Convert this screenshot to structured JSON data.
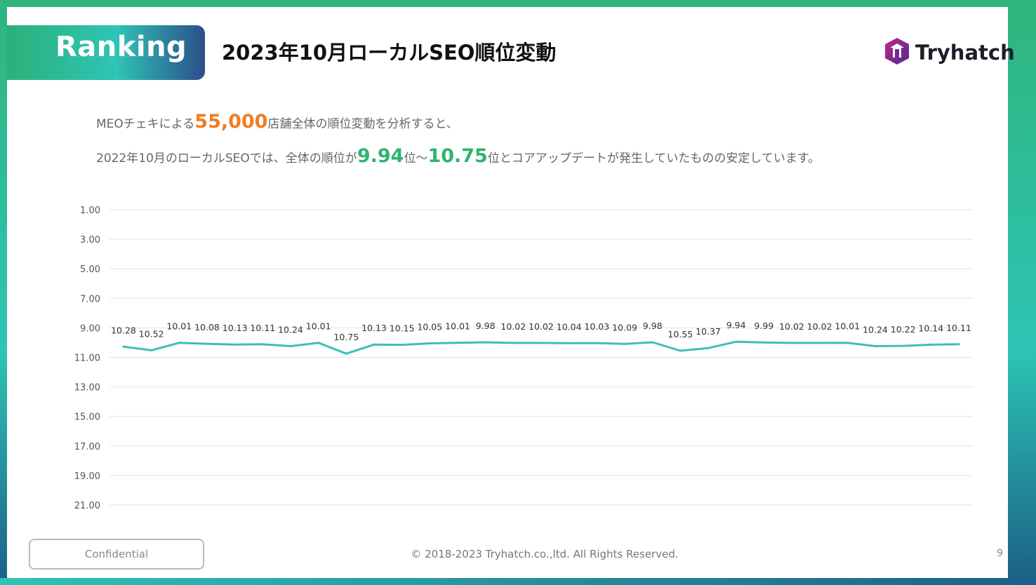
{
  "header": {
    "badge": "Ranking",
    "title": "2023年10月ローカルSEO順位変動",
    "logo_text": "Tryhatch"
  },
  "summary": {
    "line1_prefix": "MEOチェキによる",
    "line1_highlight": "55,000",
    "line1_suffix": "店舗全体の順位変動を分析すると、",
    "line2_prefix": "2022年10月のローカルSEOでは、全体の順位が",
    "line2_low": "9.94",
    "line2_mid": "位～",
    "line2_high": "10.75",
    "line2_suffix": "位とコアアップデートが発生していたものの安定しています。"
  },
  "footer": {
    "confidential": "Confidential",
    "copyright": "© 2018-2023 Tryhatch.co.,ltd. All Rights Reserved.",
    "page_number": "9"
  },
  "colors": {
    "line": "#3cbfb8",
    "highlight_orange": "#f07d21",
    "highlight_green": "#2db56d"
  },
  "chart_data": {
    "type": "line",
    "title": "",
    "xlabel": "",
    "ylabel": "",
    "y_axis_reversed": true,
    "ylim": [
      1,
      21
    ],
    "yticks": [
      "1.00",
      "3.00",
      "5.00",
      "7.00",
      "9.00",
      "11.00",
      "13.00",
      "15.00",
      "17.00",
      "19.00",
      "21.00"
    ],
    "grid": true,
    "series": [
      {
        "values": [
          10.28,
          10.52,
          10.01,
          10.08,
          10.13,
          10.11,
          10.24,
          10.01,
          10.75,
          10.13,
          10.15,
          10.05,
          10.01,
          9.98,
          10.02,
          10.02,
          10.04,
          10.03,
          10.09,
          9.98,
          10.55,
          10.37,
          9.94,
          9.99,
          10.02,
          10.02,
          10.01,
          10.24,
          10.22,
          10.14,
          10.11
        ]
      }
    ]
  }
}
